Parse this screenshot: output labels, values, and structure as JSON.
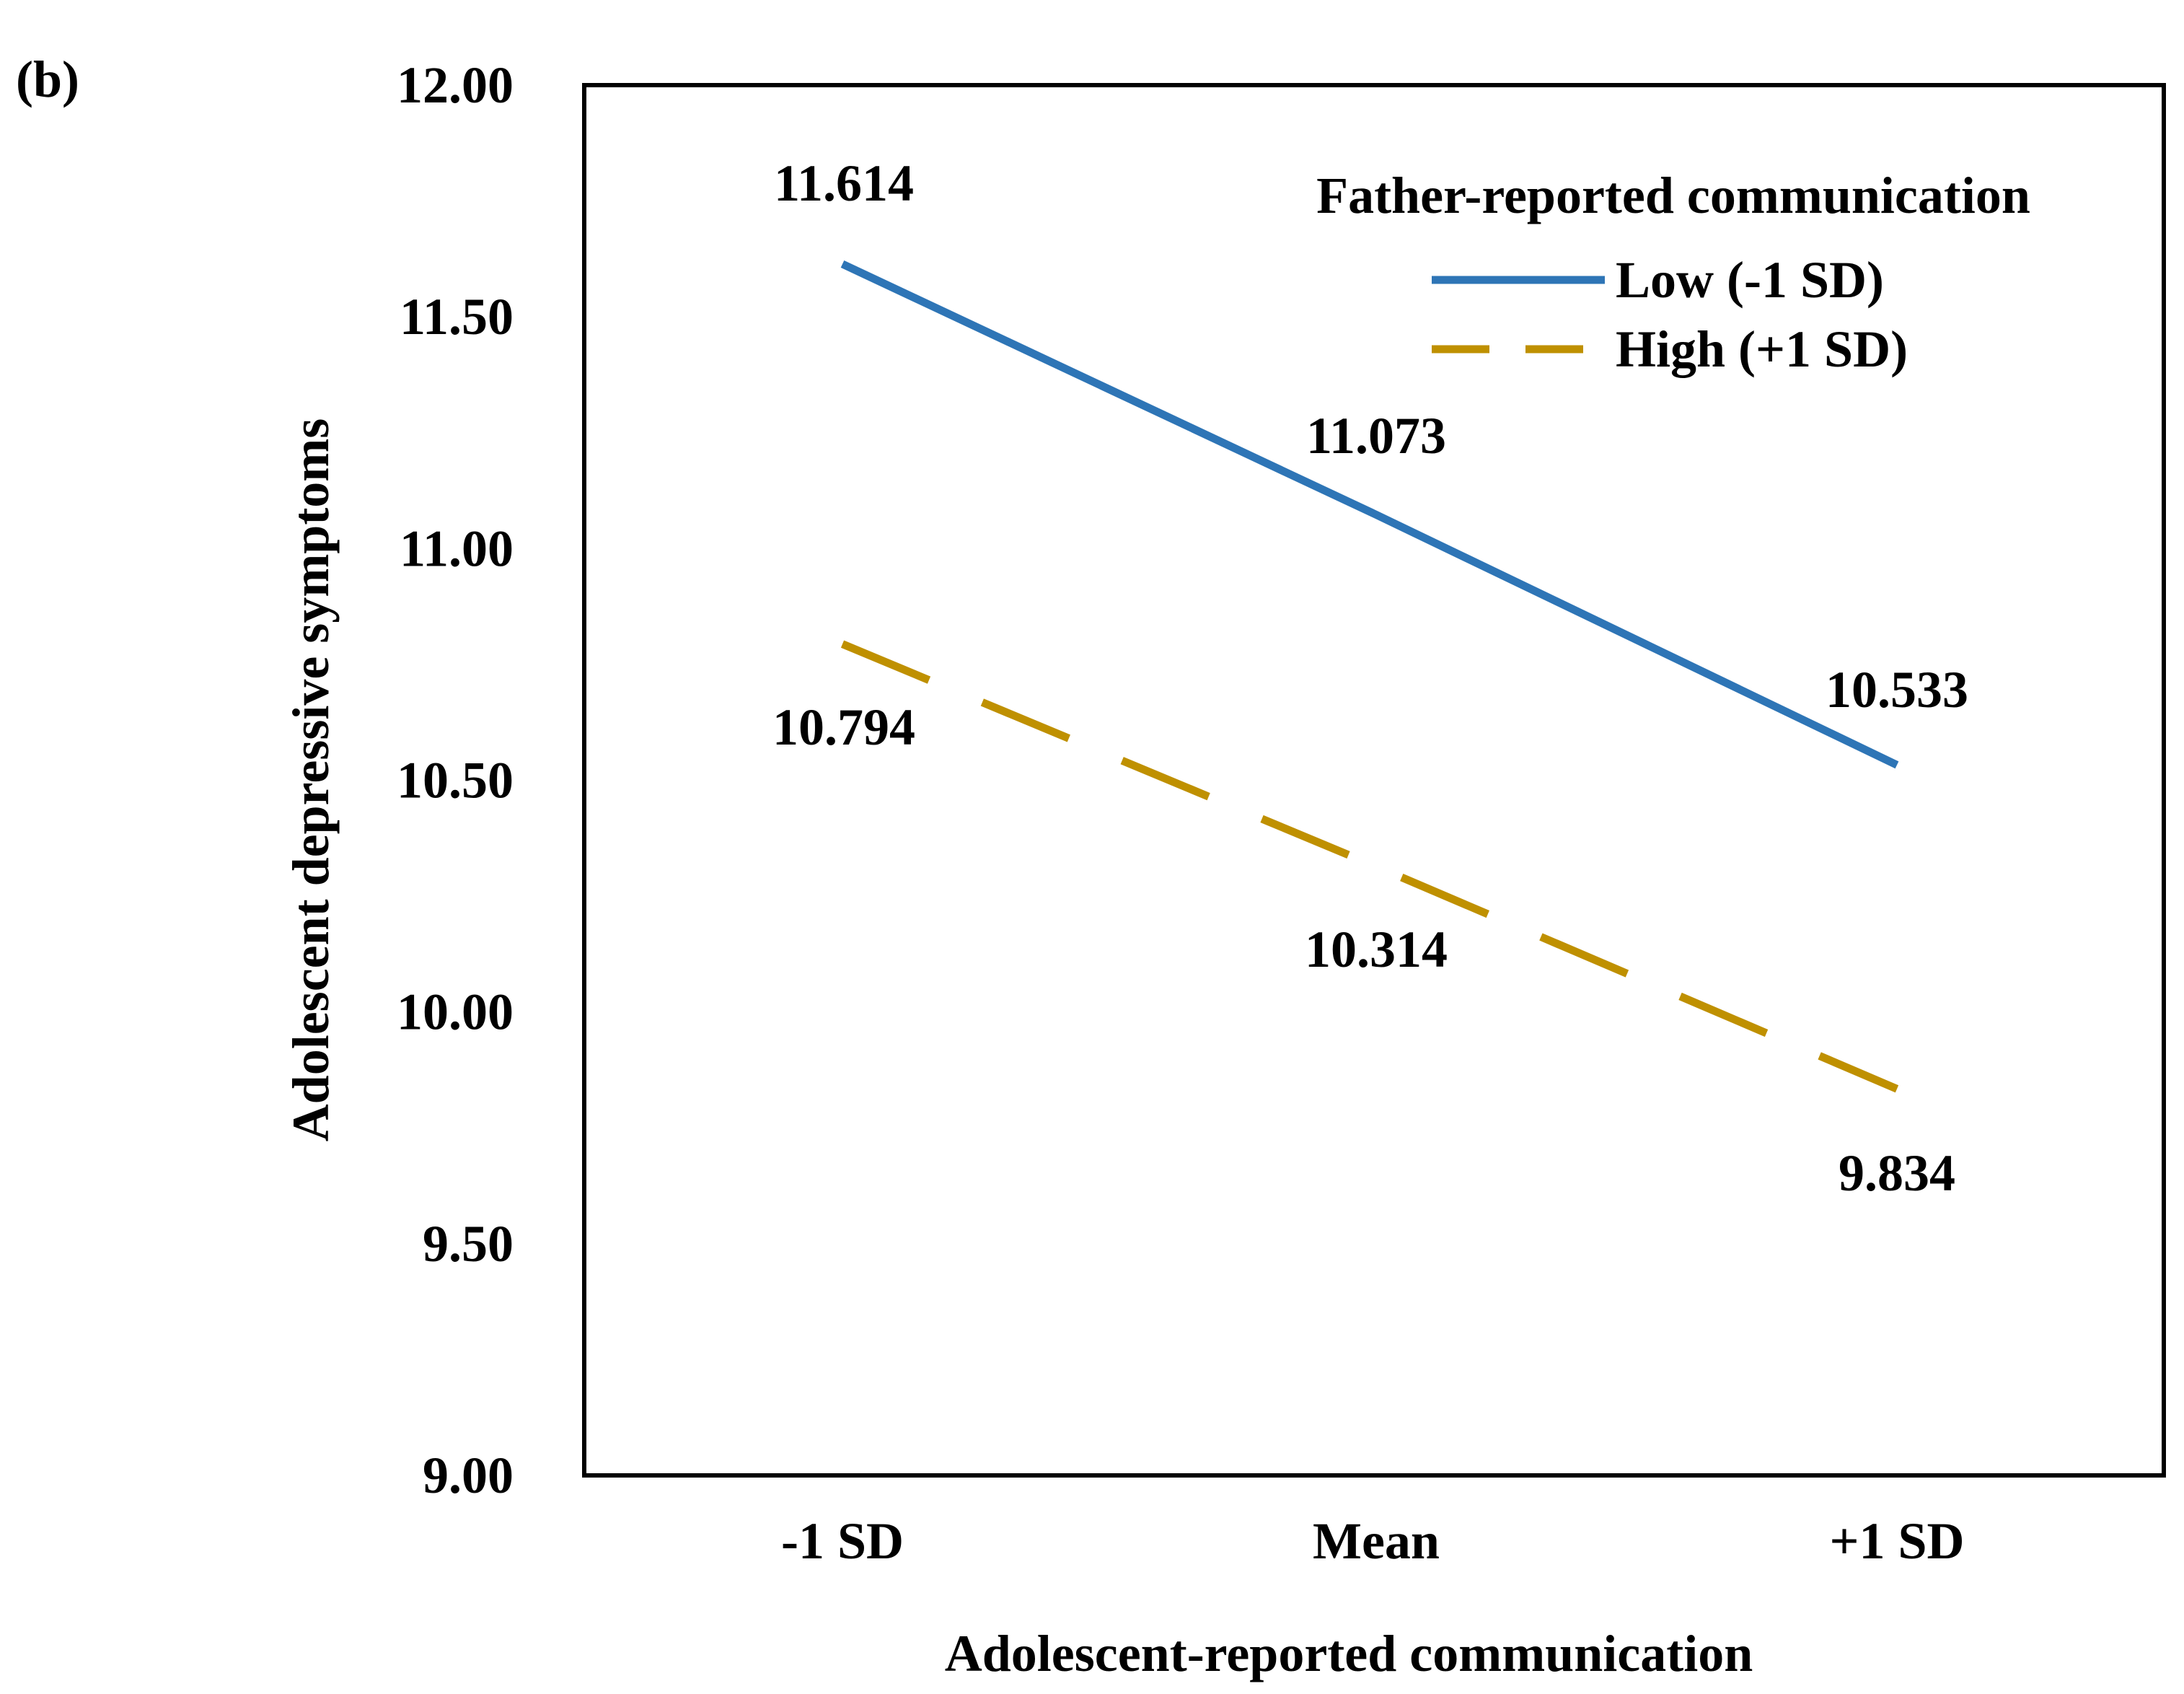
{
  "panel_label": "(b)",
  "chart_data": {
    "type": "line",
    "title": "",
    "xlabel": "Adolescent-reported communication",
    "ylabel": "Adolescent depressive symptoms",
    "categories": [
      "-1 SD",
      "Mean",
      "+1 SD"
    ],
    "ylim": [
      9.0,
      12.0
    ],
    "yticks": [
      9.0,
      9.5,
      10.0,
      10.5,
      11.0,
      11.5,
      12.0
    ],
    "ytick_labels": [
      "9.00",
      "9.50",
      "10.00",
      "10.50",
      "11.00",
      "11.50",
      "12.00"
    ],
    "grid": false,
    "legend": {
      "title": "Father-reported communication",
      "position": "top-right"
    },
    "series": [
      {
        "name": "Low (-1 SD)",
        "color": "#2E75B6",
        "dash": "solid",
        "values": [
          11.614,
          11.073,
          10.533
        ],
        "labels": [
          "11.614",
          "11.073",
          "10.533"
        ]
      },
      {
        "name": "High (+1 SD)",
        "color": "#BF9000",
        "dash": "dashed",
        "values": [
          10.794,
          10.314,
          9.834
        ],
        "labels": [
          "10.794",
          "10.314",
          "9.834"
        ]
      }
    ]
  }
}
